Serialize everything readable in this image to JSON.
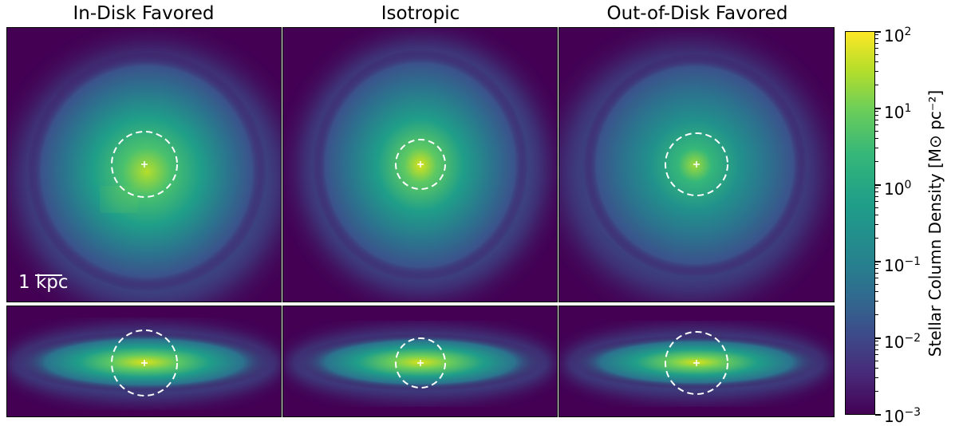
{
  "chart_data": {
    "type": "heatmap",
    "panels": [
      {
        "title": "In-Disk Favored",
        "face_on_circle_r": 41,
        "edge_on_circle_r": 41
      },
      {
        "title": "Isotropic",
        "face_on_circle_r": 31,
        "edge_on_circle_r": 31
      },
      {
        "title": "Out-of-Disk Favored",
        "face_on_circle_r": 39,
        "edge_on_circle_r": 39
      }
    ],
    "scale_bar": {
      "label": "1 kpc"
    },
    "colorbar": {
      "label": "Stellar Column Density [M⊙ pc⁻²]",
      "scale": "log",
      "range": [
        0.001,
        100
      ],
      "ticks": [
        {
          "base": "10",
          "exp": "2"
        },
        {
          "base": "10",
          "exp": "1"
        },
        {
          "base": "10",
          "exp": "0"
        },
        {
          "base": "10",
          "exp": "−1"
        },
        {
          "base": "10",
          "exp": "−2"
        },
        {
          "base": "10",
          "exp": "−3"
        }
      ],
      "colormap": "viridis"
    },
    "colors": {
      "low": "#440154",
      "mid": "#21918c",
      "high": "#fde725"
    }
  }
}
